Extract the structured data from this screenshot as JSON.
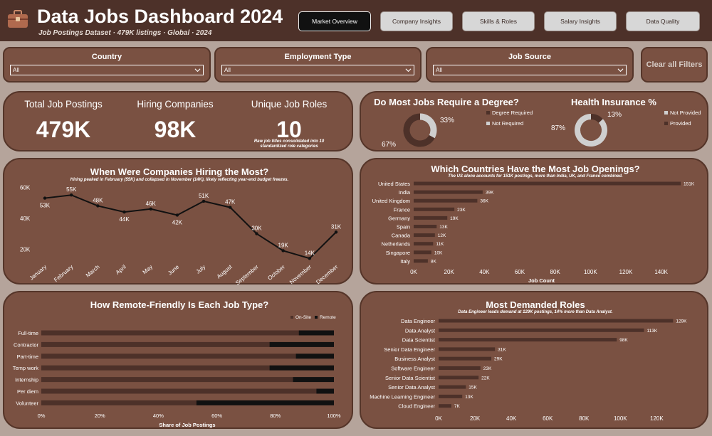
{
  "header": {
    "title": "Data Jobs Dashboard 2024",
    "subtitle": "Job Postings Dataset · 479K listings · Global · 2024",
    "tabs": [
      {
        "label": "Market Overview",
        "active": true
      },
      {
        "label": "Company Insights",
        "active": false
      },
      {
        "label": "Skills & Roles",
        "active": false
      },
      {
        "label": "Salary Insights",
        "active": false
      },
      {
        "label": "Data Quality",
        "active": false
      }
    ]
  },
  "filters": {
    "country": {
      "label": "Country",
      "value": "All"
    },
    "employment_type": {
      "label": "Employment Type",
      "value": "All"
    },
    "job_source": {
      "label": "Job Source",
      "value": "All"
    },
    "clear_label": "Clear all Filters"
  },
  "kpis": {
    "total_postings": {
      "label": "Total Job Postings",
      "value": "479K"
    },
    "hiring_companies": {
      "label": "Hiring Companies",
      "value": "98K"
    },
    "unique_roles": {
      "label": "Unique Job Roles",
      "value": "10",
      "note": "Raw job titles consolidated into 10 standardized role categories"
    }
  },
  "degree": {
    "title": "Do Most Jobs Require a Degree?",
    "legend": [
      "Degree Required",
      "Not Required"
    ],
    "colors": {
      "required": "#4d3129",
      "not_required": "#cfcfcf"
    }
  },
  "insurance": {
    "title": "Health Insurance %",
    "legend": [
      "Not Provided",
      "Provided"
    ],
    "colors": {
      "provided": "#4d3129",
      "not_provided": "#cfcfcf"
    }
  },
  "monthly": {
    "title": "When Were Companies Hiring the Most?",
    "note": "Hiring peaked in February (55K) and collapsed in November (14K), likely reflecting year-end budget freezes."
  },
  "countries": {
    "title": "Which Countries Have the Most Job Openings?",
    "note": "The US alone accounts for 151K postings, more than India, UK, and France combined."
  },
  "remote": {
    "title": "How Remote-Friendly Is Each Job Type?",
    "legend": [
      "On-Site",
      "Remote"
    ]
  },
  "roles": {
    "title": "Most Demanded Roles",
    "note": "Data Engineer leads demand at 129K postings, 14% more than Data Analyst."
  },
  "chart_data": [
    {
      "type": "pie",
      "id": "degree",
      "labels": [
        "Degree Required",
        "Not Required"
      ],
      "values": [
        67,
        33
      ],
      "data_labels": [
        "67%",
        "33%"
      ]
    },
    {
      "type": "pie",
      "id": "insurance",
      "labels": [
        "Not Provided",
        "Provided"
      ],
      "values": [
        87,
        13
      ],
      "data_labels": [
        "87%",
        "13%"
      ]
    },
    {
      "type": "line",
      "id": "monthly",
      "categories": [
        "January",
        "February",
        "March",
        "April",
        "May",
        "June",
        "July",
        "August",
        "September",
        "October",
        "November",
        "December"
      ],
      "values": [
        53,
        55,
        48,
        44,
        46,
        42,
        51,
        47,
        30,
        19,
        14,
        31
      ],
      "data_labels": [
        "53K",
        "55K",
        "48K",
        "44K",
        "46K",
        "42K",
        "51K",
        "47K",
        "30K",
        "19K",
        "14K",
        "31K"
      ],
      "yticks": [
        "20K",
        "40K",
        "60K"
      ],
      "ytick_values": [
        20,
        40,
        60
      ],
      "ylim": [
        10,
        62
      ]
    },
    {
      "type": "bar",
      "id": "countries",
      "orientation": "horizontal",
      "categories": [
        "United States",
        "India",
        "United Kingdom",
        "France",
        "Germany",
        "Spain",
        "Canada",
        "Netherlands",
        "Singapore",
        "Italy"
      ],
      "values": [
        151,
        39,
        36,
        23,
        19,
        13,
        12,
        11,
        10,
        8
      ],
      "data_labels": [
        "151K",
        "39K",
        "36K",
        "23K",
        "19K",
        "13K",
        "12K",
        "11K",
        "10K",
        "8K"
      ],
      "xticks": [
        "0K",
        "20K",
        "40K",
        "60K",
        "80K",
        "100K",
        "120K",
        "140K"
      ],
      "xtick_values": [
        0,
        20,
        40,
        60,
        80,
        100,
        120,
        140
      ],
      "xlim": [
        0,
        151
      ],
      "xlabel": "Job Count"
    },
    {
      "type": "bar",
      "id": "remote",
      "orientation": "horizontal",
      "stacked": true,
      "categories": [
        "Full-time",
        "Contractor",
        "Part-time",
        "Temp work",
        "Internship",
        "Per diem",
        "Volunteer"
      ],
      "series": [
        {
          "name": "On-Site",
          "values": [
            88,
            78,
            87,
            78,
            86,
            94,
            53
          ]
        },
        {
          "name": "Remote",
          "values": [
            12,
            22,
            13,
            22,
            14,
            6,
            47
          ]
        }
      ],
      "xticks": [
        "0%",
        "20%",
        "40%",
        "60%",
        "80%",
        "100%"
      ],
      "xtick_values": [
        0,
        20,
        40,
        60,
        80,
        100
      ],
      "xlim": [
        0,
        100
      ],
      "xlabel": "Share of Job Postings"
    },
    {
      "type": "bar",
      "id": "roles",
      "orientation": "horizontal",
      "categories": [
        "Data Engineer",
        "Data Analyst",
        "Data Scientist",
        "Senior Data Engineer",
        "Business Analyst",
        "Software Engineer",
        "Senior Data Scientist",
        "Senior Data Analyst",
        "Machine Learning Engineer",
        "Cloud Engineer"
      ],
      "values": [
        129,
        113,
        98,
        31,
        29,
        23,
        22,
        15,
        13,
        7
      ],
      "data_labels": [
        "129K",
        "113K",
        "98K",
        "31K",
        "29K",
        "23K",
        "22K",
        "15K",
        "13K",
        "7K"
      ],
      "xticks": [
        "0K",
        "20K",
        "40K",
        "60K",
        "80K",
        "100K",
        "120K"
      ],
      "xtick_values": [
        0,
        20,
        40,
        60,
        80,
        100,
        120
      ],
      "xlim": [
        0,
        132
      ]
    }
  ]
}
